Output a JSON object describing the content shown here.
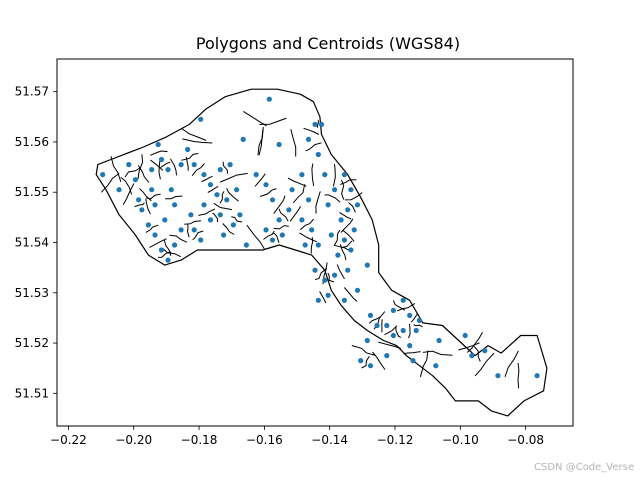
{
  "chart_data": {
    "type": "scatter",
    "title": "Polygons and Centroids (WGS84)",
    "xlabel": "",
    "ylabel": "",
    "xlim": [
      -0.2235,
      -0.0655
    ],
    "ylim": [
      51.5035,
      51.5765
    ],
    "x_ticks": [
      -0.22,
      -0.2,
      -0.18,
      -0.16,
      -0.14,
      -0.12,
      -0.1,
      -0.08
    ],
    "x_tick_labels": [
      "−0.22",
      "−0.20",
      "−0.18",
      "−0.16",
      "−0.14",
      "−0.12",
      "−0.10",
      "−0.08"
    ],
    "y_ticks": [
      51.51,
      51.52,
      51.53,
      51.54,
      51.55,
      51.56,
      51.57
    ],
    "y_tick_labels": [
      "51.51",
      "51.52",
      "51.53",
      "51.54",
      "51.55",
      "51.56",
      "51.57"
    ],
    "grid": false,
    "marker_color": "#1f77b4",
    "outline_color": "#000000",
    "outline": [
      [
        -0.211,
        51.5555
      ],
      [
        -0.205,
        51.557
      ],
      [
        -0.197,
        51.559
      ],
      [
        -0.19,
        51.561
      ],
      [
        -0.183,
        51.5635
      ],
      [
        -0.178,
        51.5665
      ],
      [
        -0.172,
        51.569
      ],
      [
        -0.164,
        51.5705
      ],
      [
        -0.156,
        51.5705
      ],
      [
        -0.149,
        51.5695
      ],
      [
        -0.145,
        51.568
      ],
      [
        -0.143,
        51.565
      ],
      [
        -0.1425,
        51.5615
      ],
      [
        -0.1395,
        51.5575
      ],
      [
        -0.1345,
        51.5535
      ],
      [
        -0.1305,
        51.549
      ],
      [
        -0.127,
        51.5445
      ],
      [
        -0.125,
        51.5395
      ],
      [
        -0.125,
        51.534
      ],
      [
        -0.121,
        51.5305
      ],
      [
        -0.1155,
        51.5285
      ],
      [
        -0.1115,
        51.524
      ],
      [
        -0.1055,
        51.5235
      ],
      [
        -0.1005,
        51.5205
      ],
      [
        -0.0955,
        51.5175
      ],
      [
        -0.0915,
        51.5195
      ],
      [
        -0.0875,
        51.518
      ],
      [
        -0.0815,
        51.5215
      ],
      [
        -0.0765,
        51.5215
      ],
      [
        -0.0735,
        51.515
      ],
      [
        -0.0745,
        51.5105
      ],
      [
        -0.0805,
        51.5085
      ],
      [
        -0.0855,
        51.5055
      ],
      [
        -0.0905,
        51.5065
      ],
      [
        -0.0945,
        51.5085
      ],
      [
        -0.1015,
        51.5085
      ],
      [
        -0.1045,
        51.511
      ],
      [
        -0.1085,
        51.5135
      ],
      [
        -0.1125,
        51.5155
      ],
      [
        -0.1165,
        51.5175
      ],
      [
        -0.1195,
        51.5195
      ],
      [
        -0.1235,
        51.5205
      ],
      [
        -0.1285,
        51.5225
      ],
      [
        -0.1325,
        51.5245
      ],
      [
        -0.1365,
        51.5275
      ],
      [
        -0.1395,
        51.5305
      ],
      [
        -0.1415,
        51.5345
      ],
      [
        -0.1455,
        51.5375
      ],
      [
        -0.1505,
        51.5385
      ],
      [
        -0.1555,
        51.5395
      ],
      [
        -0.1605,
        51.5385
      ],
      [
        -0.1675,
        51.5385
      ],
      [
        -0.1745,
        51.5385
      ],
      [
        -0.1805,
        51.5385
      ],
      [
        -0.1855,
        51.5365
      ],
      [
        -0.1905,
        51.5355
      ],
      [
        -0.1955,
        51.5375
      ],
      [
        -0.1995,
        51.5415
      ],
      [
        -0.2045,
        51.5455
      ],
      [
        -0.2085,
        51.5505
      ],
      [
        -0.2115,
        51.5535
      ]
    ],
    "points": [
      [
        -0.2095,
        51.5535
      ],
      [
        -0.2015,
        51.5555
      ],
      [
        -0.2045,
        51.5505
      ],
      [
        -0.1995,
        51.5525
      ],
      [
        -0.1985,
        51.5485
      ],
      [
        -0.1945,
        51.5545
      ],
      [
        -0.1925,
        51.5595
      ],
      [
        -0.1915,
        51.5565
      ],
      [
        -0.1895,
        51.5545
      ],
      [
        -0.1945,
        51.5505
      ],
      [
        -0.1975,
        51.5465
      ],
      [
        -0.1935,
        51.5475
      ],
      [
        -0.1955,
        51.5435
      ],
      [
        -0.1935,
        51.5415
      ],
      [
        -0.1915,
        51.5385
      ],
      [
        -0.1895,
        51.5365
      ],
      [
        -0.1875,
        51.5395
      ],
      [
        -0.1855,
        51.5425
      ],
      [
        -0.1905,
        51.5445
      ],
      [
        -0.1875,
        51.5475
      ],
      [
        -0.1885,
        51.5505
      ],
      [
        -0.1855,
        51.5555
      ],
      [
        -0.1835,
        51.5585
      ],
      [
        -0.1795,
        51.5645
      ],
      [
        -0.1815,
        51.5555
      ],
      [
        -0.1785,
        51.5535
      ],
      [
        -0.1765,
        51.5515
      ],
      [
        -0.1735,
        51.5545
      ],
      [
        -0.1705,
        51.5555
      ],
      [
        -0.1745,
        51.5495
      ],
      [
        -0.1785,
        51.5475
      ],
      [
        -0.1825,
        51.5455
      ],
      [
        -0.1815,
        51.5425
      ],
      [
        -0.1795,
        51.5405
      ],
      [
        -0.1765,
        51.5445
      ],
      [
        -0.1735,
        51.5455
      ],
      [
        -0.1725,
        51.5415
      ],
      [
        -0.1695,
        51.5435
      ],
      [
        -0.1715,
        51.5485
      ],
      [
        -0.1685,
        51.5505
      ],
      [
        -0.1675,
        51.5455
      ],
      [
        -0.1655,
        51.5395
      ],
      [
        -0.1625,
        51.5535
      ],
      [
        -0.1665,
        51.5605
      ],
      [
        -0.1585,
        51.5685
      ],
      [
        -0.1555,
        51.5595
      ],
      [
        -0.1595,
        51.5515
      ],
      [
        -0.1575,
        51.5485
      ],
      [
        -0.1555,
        51.5445
      ],
      [
        -0.1595,
        51.5425
      ],
      [
        -0.1575,
        51.5405
      ],
      [
        -0.1545,
        51.5415
      ],
      [
        -0.1525,
        51.5465
      ],
      [
        -0.1515,
        51.5505
      ],
      [
        -0.1485,
        51.5535
      ],
      [
        -0.1465,
        51.5485
      ],
      [
        -0.1485,
        51.5445
      ],
      [
        -0.1455,
        51.5425
      ],
      [
        -0.1475,
        51.5395
      ],
      [
        -0.1435,
        51.5395
      ],
      [
        -0.1445,
        51.5345
      ],
      [
        -0.1415,
        51.5325
      ],
      [
        -0.1405,
        51.5295
      ],
      [
        -0.1435,
        51.5285
      ],
      [
        -0.1385,
        51.5335
      ],
      [
        -0.1375,
        51.5375
      ],
      [
        -0.1395,
        51.5415
      ],
      [
        -0.1365,
        51.5445
      ],
      [
        -0.1405,
        51.5475
      ],
      [
        -0.1385,
        51.5505
      ],
      [
        -0.1415,
        51.5535
      ],
      [
        -0.1435,
        51.5575
      ],
      [
        -0.1465,
        51.5605
      ],
      [
        -0.1445,
        51.5635
      ],
      [
        -0.1425,
        51.5635
      ],
      [
        -0.1355,
        51.5535
      ],
      [
        -0.1335,
        51.5505
      ],
      [
        -0.1315,
        51.5475
      ],
      [
        -0.1345,
        51.5465
      ],
      [
        -0.1325,
        51.5425
      ],
      [
        -0.1355,
        51.5405
      ],
      [
        -0.1335,
        51.5385
      ],
      [
        -0.1345,
        51.5345
      ],
      [
        -0.1355,
        51.5285
      ],
      [
        -0.1315,
        51.5305
      ],
      [
        -0.1285,
        51.5355
      ],
      [
        -0.1275,
        51.5255
      ],
      [
        -0.1255,
        51.5235
      ],
      [
        -0.1285,
        51.5205
      ],
      [
        -0.1305,
        51.5165
      ],
      [
        -0.1275,
        51.5155
      ],
      [
        -0.1225,
        51.5175
      ],
      [
        -0.1205,
        51.5215
      ],
      [
        -0.1225,
        51.5235
      ],
      [
        -0.1205,
        51.5265
      ],
      [
        -0.1175,
        51.5285
      ],
      [
        -0.1155,
        51.5255
      ],
      [
        -0.1175,
        51.5225
      ],
      [
        -0.1155,
        51.5195
      ],
      [
        -0.1145,
        51.5165
      ],
      [
        -0.1135,
        51.5225
      ],
      [
        -0.1125,
        51.5245
      ],
      [
        -0.1065,
        51.5205
      ],
      [
        -0.1075,
        51.5155
      ],
      [
        -0.0985,
        51.5215
      ],
      [
        -0.0965,
        51.5175
      ],
      [
        -0.0925,
        51.5185
      ],
      [
        -0.0885,
        51.5135
      ],
      [
        -0.0765,
        51.5135
      ]
    ]
  },
  "watermark": "CSDN @Code_Verse"
}
